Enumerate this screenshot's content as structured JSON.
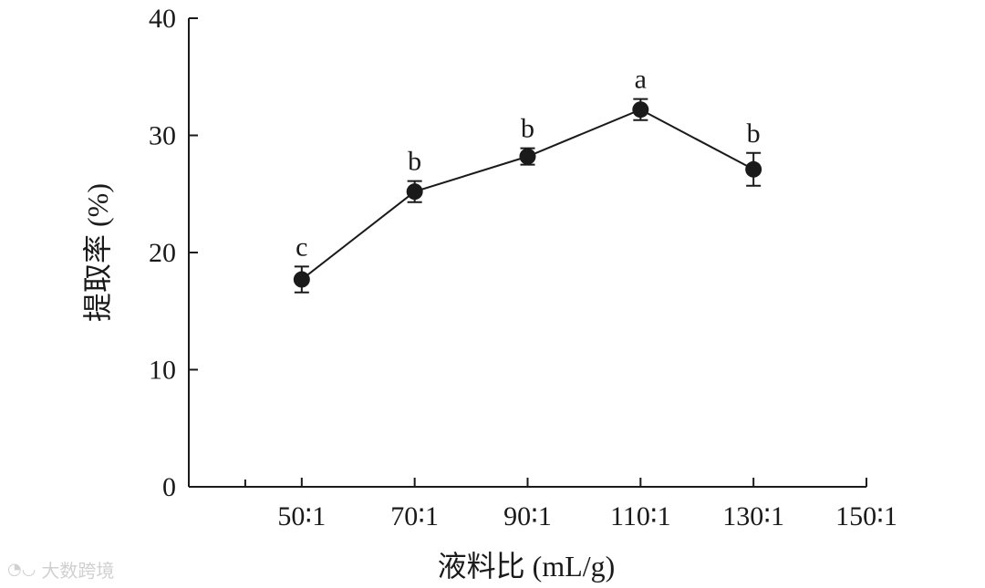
{
  "chart_data": {
    "type": "line",
    "xlabel": "液料比 (mL/g)",
    "ylabel": "提取率 (%)",
    "ylim": [
      0,
      40
    ],
    "yticks": [
      "0",
      "10",
      "20",
      "30",
      "40"
    ],
    "xtick_labels": [
      "50∶1",
      "70∶1",
      "90∶1",
      "110∶1",
      "130∶1",
      "150∶1"
    ],
    "grid": false,
    "series": [
      {
        "categories": [
          "50∶1",
          "70∶1",
          "90∶1",
          "110∶1",
          "130∶1"
        ],
        "values": [
          17.7,
          25.2,
          28.2,
          32.2,
          27.1
        ],
        "errors": [
          1.1,
          0.9,
          0.7,
          0.9,
          1.4
        ],
        "significance": [
          "c",
          "b",
          "b",
          "a",
          "b"
        ]
      }
    ]
  },
  "watermark": {
    "text": "大数跨境",
    "icon": "chat-bubble-icon"
  }
}
